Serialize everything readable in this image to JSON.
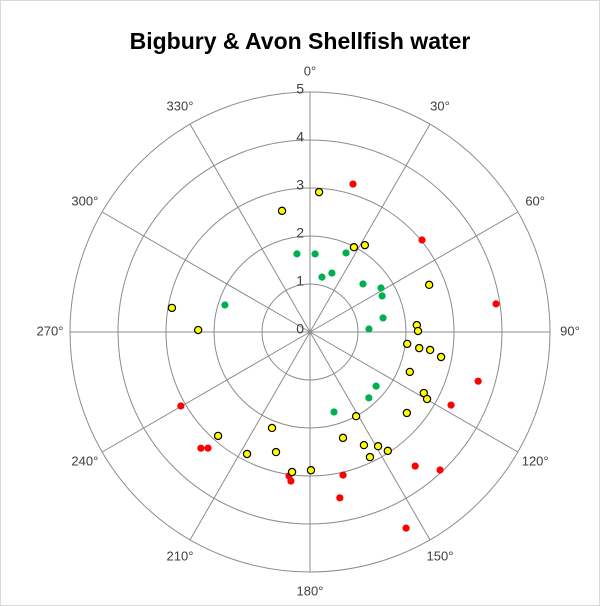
{
  "chart_data": {
    "type": "polar_scatter",
    "title": "Bigbury & Avon Shellfish water",
    "rlim": [
      0,
      5
    ],
    "rticks": [
      0,
      1,
      2,
      3,
      4,
      5
    ],
    "thetaticks": [
      {
        "value": 0,
        "label": "0°"
      },
      {
        "value": 30,
        "label": "30°"
      },
      {
        "value": 60,
        "label": "60°"
      },
      {
        "value": 90,
        "label": "90°"
      },
      {
        "value": 120,
        "label": "120°"
      },
      {
        "value": 150,
        "label": "150°"
      },
      {
        "value": 180,
        "label": "180°"
      },
      {
        "value": 210,
        "label": "210°"
      },
      {
        "value": 240,
        "label": "240°"
      },
      {
        "value": 270,
        "label": "270°"
      },
      {
        "value": 300,
        "label": "300°"
      },
      {
        "value": 330,
        "label": "330°"
      }
    ],
    "grid": true,
    "series": [
      {
        "color": "#ff0000",
        "theta": [
          16.2,
          50.6,
          81.4,
          106.3,
          117.4,
          136.7,
          141.9,
          153.9,
          167,
          169.8,
          188.3,
          187.3,
          221.3,
          223.2,
          240.2
        ],
        "values": [
          3.21,
          3.02,
          3.92,
          3.65,
          3.31,
          3.95,
          3.55,
          4.55,
          3.06,
          3.51,
          3.03,
          3.13,
          3.22,
          3.32,
          3.1
        ]
      },
      {
        "color": "#ffff00",
        "edgecolor": "#000000",
        "theta": [
          3.7,
          347,
          27.4,
          32.3,
          68.4,
          86.3,
          89.5,
          97,
          98.4,
          98.5,
          100.8,
          111.8,
          118.2,
          119.8,
          129.9,
          151.3,
          162.7,
          154.5,
          149.2,
          154.4,
          146.8,
          179.6,
          187.3,
          201.6,
          195.8,
          207.3,
          221.5,
          271,
          279.9
        ],
        "values": [
          2.92,
          2.59,
          1.99,
          2.14,
          2.67,
          2.23,
          2.25,
          2.04,
          2.3,
          2.53,
          2.78,
          2.24,
          2.69,
          2.81,
          2.63,
          2.0,
          2.31,
          2.61,
          2.77,
          2.89,
          2.96,
          2.88,
          2.94,
          2.15,
          2.6,
          2.86,
          2.89,
          2.33,
          2.92
        ]
      },
      {
        "color": "#00b050",
        "theta": [
          350.5,
          3.7,
          20.4,
          12.3,
          24.5,
          47.8,
          58.2,
          63.4,
          79.1,
          87.1,
          129.3,
          138.2,
          163.3,
          287.6
        ],
        "values": [
          1.65,
          1.63,
          1.31,
          1.17,
          1.81,
          1.49,
          1.74,
          1.68,
          1.55,
          1.23,
          1.78,
          1.84,
          1.74,
          1.86
        ]
      }
    ]
  }
}
